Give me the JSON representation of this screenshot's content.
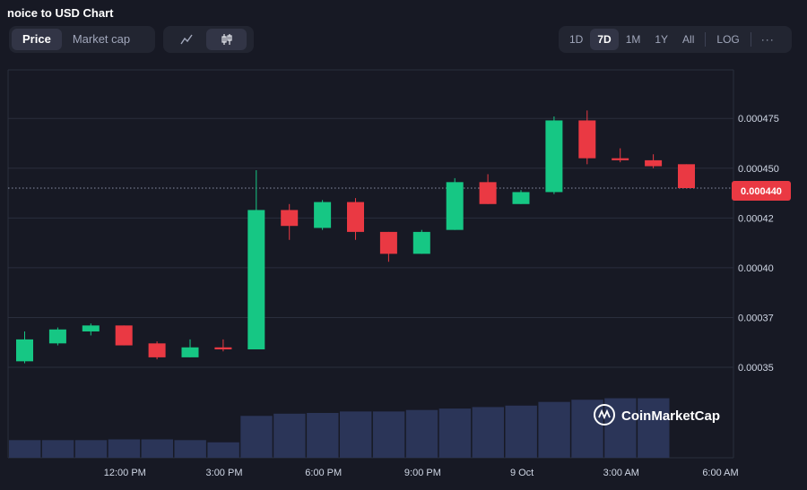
{
  "title": "noice to USD Chart",
  "metric_tabs": [
    {
      "label": "Price",
      "active": true
    },
    {
      "label": "Market cap",
      "active": false
    }
  ],
  "chart_type_buttons": [
    {
      "icon": "line-chart-icon",
      "active": false
    },
    {
      "icon": "candlestick-chart-icon",
      "active": true
    }
  ],
  "range_buttons": [
    {
      "label": "1D",
      "active": false
    },
    {
      "label": "7D",
      "active": true
    },
    {
      "label": "1M",
      "active": false
    },
    {
      "label": "1Y",
      "active": false
    },
    {
      "label": "All",
      "active": false
    }
  ],
  "log_label": "LOG",
  "more_label": "···",
  "watermark": "CoinMarketCap",
  "colors": {
    "up": "#16c784",
    "down": "#ea3943",
    "volume": "#2b3558",
    "grid": "#2a2e3d",
    "current_badge": "#ea3943"
  },
  "current_price_label": "0.000440",
  "chart_data": {
    "type": "candlestick",
    "title": "noice to USD Chart",
    "y_ticks": [
      {
        "label": "0.000475",
        "value": 0.000475
      },
      {
        "label": "0.000450",
        "value": 0.00045
      },
      {
        "label": "0.00042",
        "value": 0.000425
      },
      {
        "label": "0.00040",
        "value": 0.0004
      },
      {
        "label": "0.00037",
        "value": 0.000375
      },
      {
        "label": "0.00035",
        "value": 0.00035
      }
    ],
    "x_ticks": [
      {
        "label": "12:00 PM",
        "index": 2
      },
      {
        "label": "3:00 PM",
        "index": 5
      },
      {
        "label": "6:00 PM",
        "index": 8
      },
      {
        "label": "9:00 PM",
        "index": 11
      },
      {
        "label": "9 Oct",
        "index": 14
      },
      {
        "label": "3:00 AM",
        "index": 17
      },
      {
        "label": "6:00 AM",
        "index": 20
      }
    ],
    "ylim": [
      0.000341,
      0.0004994
    ],
    "current_price": 0.00044,
    "grid": true,
    "candles": [
      {
        "open": 0.000353,
        "high": 0.000368,
        "low": 0.000352,
        "close": 0.000364
      },
      {
        "open": 0.000362,
        "high": 0.00037,
        "low": 0.000361,
        "close": 0.000369
      },
      {
        "open": 0.000368,
        "high": 0.000372,
        "low": 0.000366,
        "close": 0.000371
      },
      {
        "open": 0.000371,
        "high": 0.000371,
        "low": 0.000361,
        "close": 0.000361
      },
      {
        "open": 0.000362,
        "high": 0.000363,
        "low": 0.000354,
        "close": 0.000355
      },
      {
        "open": 0.000355,
        "high": 0.000364,
        "low": 0.000355,
        "close": 0.00036
      },
      {
        "open": 0.00036,
        "high": 0.000364,
        "low": 0.000358,
        "close": 0.000359
      },
      {
        "open": 0.000359,
        "high": 0.000449,
        "low": 0.000359,
        "close": 0.000429
      },
      {
        "open": 0.000429,
        "high": 0.000432,
        "low": 0.000414,
        "close": 0.000421
      },
      {
        "open": 0.00042,
        "high": 0.000434,
        "low": 0.000419,
        "close": 0.000433
      },
      {
        "open": 0.000433,
        "high": 0.000435,
        "low": 0.000414,
        "close": 0.000418
      },
      {
        "open": 0.000418,
        "high": 0.000418,
        "low": 0.000403,
        "close": 0.000407
      },
      {
        "open": 0.000407,
        "high": 0.000419,
        "low": 0.000407,
        "close": 0.000418
      },
      {
        "open": 0.000419,
        "high": 0.000445,
        "low": 0.000419,
        "close": 0.000443
      },
      {
        "open": 0.000443,
        "high": 0.000447,
        "low": 0.000432,
        "close": 0.000432
      },
      {
        "open": 0.000432,
        "high": 0.000439,
        "low": 0.000432,
        "close": 0.000438
      },
      {
        "open": 0.000438,
        "high": 0.000476,
        "low": 0.000437,
        "close": 0.000474
      },
      {
        "open": 0.000474,
        "high": 0.000479,
        "low": 0.000452,
        "close": 0.000455
      },
      {
        "open": 0.000455,
        "high": 0.00046,
        "low": 0.000453,
        "close": 0.000454
      },
      {
        "open": 0.000454,
        "high": 0.000457,
        "low": 0.00045,
        "close": 0.000451
      },
      {
        "open": 0.000452,
        "high": 0.000452,
        "low": 0.00044,
        "close": 0.00044
      }
    ],
    "volume": [
      {
        "index": 0,
        "value": 24
      },
      {
        "index": 1,
        "value": 24
      },
      {
        "index": 2,
        "value": 24
      },
      {
        "index": 3,
        "value": 25
      },
      {
        "index": 4,
        "value": 25
      },
      {
        "index": 5,
        "value": 24
      },
      {
        "index": 6,
        "value": 21
      },
      {
        "index": 7,
        "value": 57
      },
      {
        "index": 8,
        "value": 60
      },
      {
        "index": 9,
        "value": 61
      },
      {
        "index": 10,
        "value": 63
      },
      {
        "index": 11,
        "value": 63
      },
      {
        "index": 12,
        "value": 65
      },
      {
        "index": 13,
        "value": 67
      },
      {
        "index": 14,
        "value": 69
      },
      {
        "index": 15,
        "value": 71
      },
      {
        "index": 16,
        "value": 76
      },
      {
        "index": 17,
        "value": 79
      },
      {
        "index": 18,
        "value": 81
      },
      {
        "index": 19,
        "value": 81
      }
    ]
  }
}
